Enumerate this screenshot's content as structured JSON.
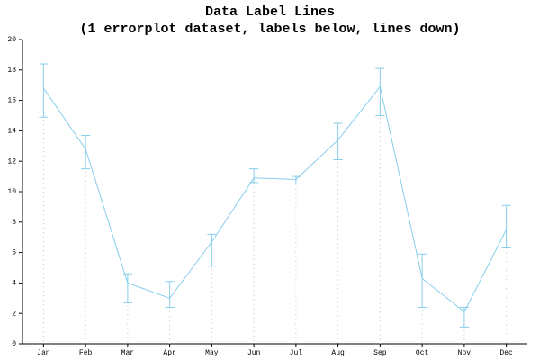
{
  "chart_data": {
    "type": "errorline",
    "title": "Data Label Lines",
    "subtitle": "(1 errorplot dataset, labels below, lines down)",
    "categories": [
      "Jan",
      "Feb",
      "Mar",
      "Apr",
      "May",
      "Jun",
      "Jul",
      "Aug",
      "Sep",
      "Oct",
      "Nov",
      "Dec"
    ],
    "series": [
      {
        "color": "#87ceeb",
        "values": [
          16.8,
          12.8,
          4.0,
          3.0,
          6.7,
          10.9,
          10.8,
          13.4,
          16.9,
          4.3,
          2.1,
          7.5
        ],
        "error_minus": [
          1.9,
          1.3,
          1.3,
          0.6,
          1.6,
          0.3,
          0.3,
          1.3,
          1.9,
          1.9,
          1.0,
          1.2
        ],
        "error_plus": [
          1.6,
          0.9,
          0.6,
          1.1,
          0.5,
          0.6,
          0.2,
          1.1,
          1.2,
          1.6,
          0.3,
          1.6
        ]
      }
    ],
    "ylim": [
      0,
      20
    ],
    "yticks": [
      0,
      2,
      4,
      6,
      8,
      10,
      12,
      14,
      16,
      18,
      20
    ],
    "drop_lines": true
  }
}
